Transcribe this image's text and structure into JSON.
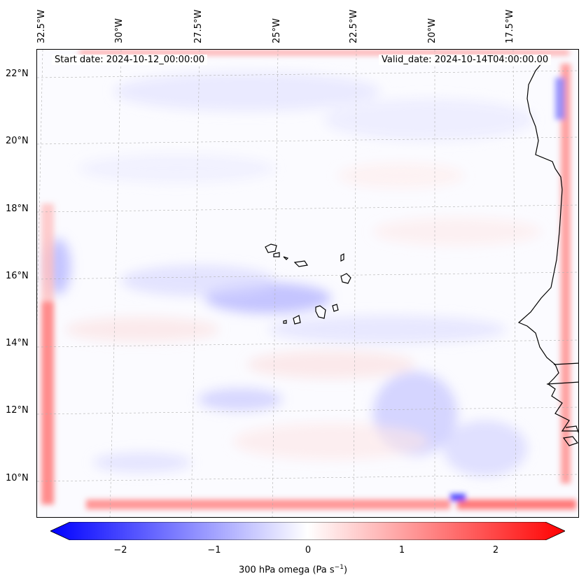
{
  "map": {
    "start_date": "Start date: 2024-10-12_00:00:00",
    "valid_date": "Valid_date: 2024-10-14T04:00:00.00",
    "longitude_labels": [
      "32.5°W",
      "30°W",
      "27.5°W",
      "25°W",
      "22.5°W",
      "20°W",
      "17.5°W"
    ],
    "latitude_labels": [
      "22°N",
      "20°N",
      "18°N",
      "16°N",
      "14°N",
      "12°N",
      "10°N"
    ],
    "field": "300 hPa omega",
    "colormap": "bwr",
    "colors": {
      "negative": "#0000ff",
      "zero": "#ffffff",
      "positive": "#ff0000",
      "coastline": "#000000"
    }
  },
  "colorbar": {
    "ticks": [
      "−2",
      "−1",
      "0",
      "1",
      "2"
    ],
    "range": [
      -2.7,
      2.7
    ],
    "label": "300 hPa omega (Pa s",
    "label_sup": "−1",
    "label_close": ")"
  }
}
